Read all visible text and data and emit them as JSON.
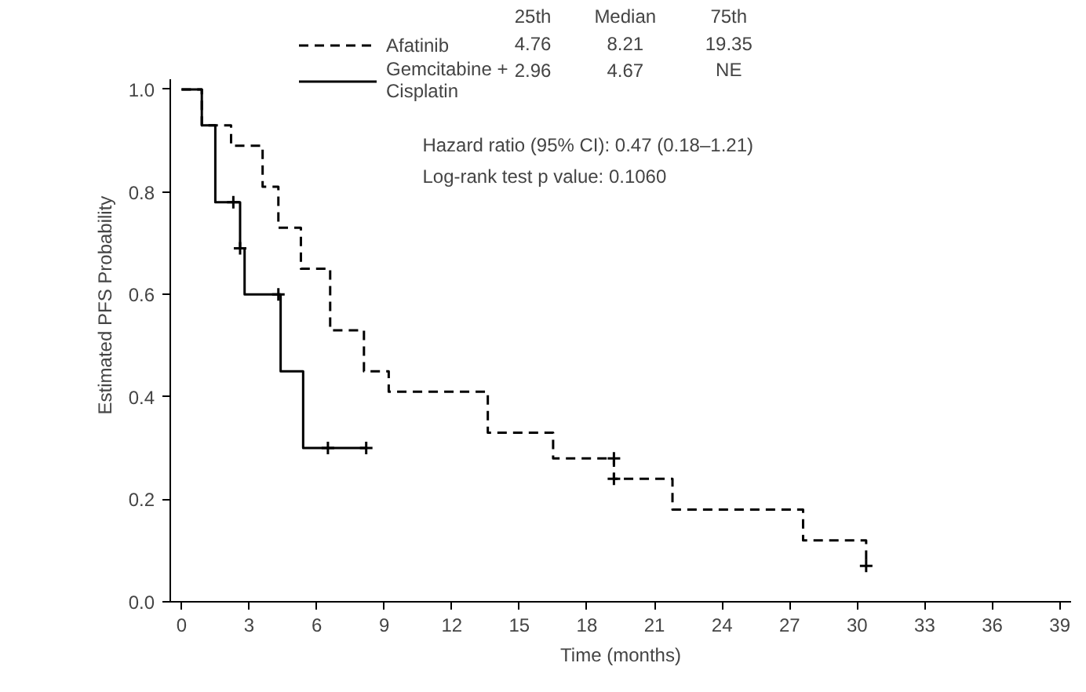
{
  "chart_data": {
    "type": "step",
    "xlabel": "Time (months)",
    "ylabel": "Estimated PFS Probability",
    "xlim": [
      -0.5,
      39.5
    ],
    "ylim": [
      0,
      1.02
    ],
    "xticks": [
      0,
      3,
      6,
      9,
      12,
      15,
      18,
      21,
      24,
      27,
      30,
      33,
      36,
      39
    ],
    "yticks": [
      {
        "value": 0,
        "label": "0.0"
      },
      0.2,
      0.4,
      0.6,
      0.8,
      {
        "value": 1,
        "label": "1.0"
      }
    ],
    "grid": false,
    "legend": "top left",
    "series": [
      {
        "name": "Afatinib",
        "color": "#000000",
        "line_style": "dashed",
        "x": [
          0,
          0.9,
          2.2,
          3.6,
          4.3,
          5.3,
          6.6,
          8.1,
          9.2,
          13.6,
          16.5,
          19.2,
          21.8,
          27.6,
          30.4
        ],
        "values": [
          1.0,
          0.93,
          0.89,
          0.81,
          0.73,
          0.65,
          0.53,
          0.45,
          0.41,
          0.33,
          0.28,
          0.24,
          0.18,
          0.12,
          0.07
        ]
      },
      {
        "name": "Gemcitabine + Cisplatin",
        "color": "#000000",
        "line_style": "solid",
        "x": [
          0,
          0.9,
          1.5,
          2.6,
          2.8,
          4.4,
          5.4,
          8.2
        ],
        "values": [
          1.0,
          0.93,
          0.78,
          0.69,
          0.6,
          0.45,
          0.3,
          0.3
        ]
      },
      {
        "type": "scatter",
        "marker": "cross",
        "color": "#000000",
        "x": [
          19.2,
          19.2,
          30.4
        ],
        "values": [
          0.28,
          0.24,
          0.07
        ]
      },
      {
        "type": "scatter",
        "marker": "cross",
        "color": "#000000",
        "x": [
          2.3,
          2.6,
          4.3,
          6.5,
          8.2
        ],
        "values": [
          0.78,
          0.69,
          0.6,
          0.3,
          0.3
        ]
      }
    ],
    "annotations": [
      "25th",
      "Median",
      "75th",
      "4.76",
      "8.21",
      "19.35",
      "2.96",
      "4.67",
      "NE",
      "Hazard ratio (95% CI):  0.47 (0.18–1.21)",
      "Log-rank test p value:  0.1060"
    ]
  }
}
